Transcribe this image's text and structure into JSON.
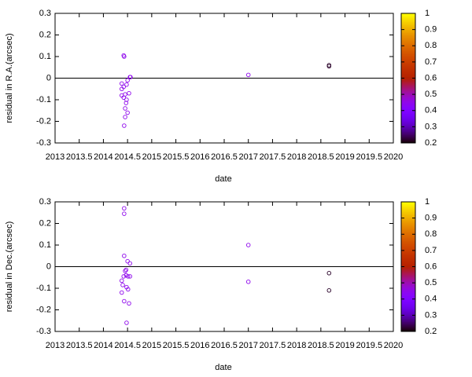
{
  "chart_data": [
    {
      "type": "scatter",
      "ylabel": "residual in R.A.(arcsec)",
      "xlabel": "date",
      "xlim": [
        2013,
        2020
      ],
      "xticks": [
        2013,
        2013.5,
        2014,
        2014.5,
        2015,
        2015.5,
        2016,
        2016.5,
        2017,
        2017.5,
        2018,
        2018.5,
        2019,
        2019.5,
        2020
      ],
      "ylim": [
        -0.3,
        0.3
      ],
      "yticks": [
        -0.3,
        -0.2,
        -0.1,
        0,
        0.1,
        0.2,
        0.3
      ],
      "clim": [
        0.2,
        1
      ],
      "cticks": [
        0.2,
        0.3,
        0.4,
        0.5,
        0.6,
        0.7,
        0.8,
        0.9,
        1
      ],
      "palette": "gnuplot",
      "zeroline": true,
      "x": [
        2014.42,
        2014.43,
        2014.5,
        2014.55,
        2014.56,
        2014.38,
        2014.42,
        2014.38,
        2014.48,
        2014.53,
        2014.45,
        2014.42,
        2014.48,
        2014.47,
        2014.45,
        2014.5,
        2014.45,
        2014.43,
        2014.38,
        2017,
        2018.67,
        2018.67
      ],
      "values": [
        0.105,
        0.1,
        -0.01,
        0.005,
        0.005,
        -0.025,
        -0.04,
        -0.05,
        -0.03,
        -0.07,
        -0.075,
        -0.09,
        -0.1,
        -0.115,
        -0.14,
        -0.16,
        -0.18,
        -0.22,
        -0.08,
        0.015,
        0.06,
        0.055
      ],
      "c": [
        0.45,
        0.45,
        0.45,
        0.45,
        0.45,
        0.45,
        0.45,
        0.45,
        0.45,
        0.45,
        0.45,
        0.45,
        0.45,
        0.45,
        0.45,
        0.45,
        0.45,
        0.45,
        0.45,
        0.45,
        0.22,
        0.22
      ]
    },
    {
      "type": "scatter",
      "ylabel": "residual in Dec.(arcsec)",
      "xlabel": "date",
      "xlim": [
        2013,
        2020
      ],
      "xticks": [
        2013,
        2013.5,
        2014,
        2014.5,
        2015,
        2015.5,
        2016,
        2016.5,
        2017,
        2017.5,
        2018,
        2018.5,
        2019,
        2019.5,
        2020
      ],
      "ylim": [
        -0.3,
        0.3
      ],
      "yticks": [
        -0.3,
        -0.2,
        -0.1,
        0,
        0.1,
        0.2,
        0.3
      ],
      "clim": [
        0.2,
        1
      ],
      "cticks": [
        0.2,
        0.3,
        0.4,
        0.5,
        0.6,
        0.7,
        0.8,
        0.9,
        1
      ],
      "palette": "gnuplot",
      "zeroline": true,
      "x": [
        2014.43,
        2014.43,
        2014.43,
        2014.5,
        2014.55,
        2014.47,
        2014.45,
        2014.47,
        2014.51,
        2014.55,
        2014.38,
        2014.4,
        2014.48,
        2014.38,
        2014.51,
        2014.43,
        2014.53,
        2014.48,
        2014.42,
        2017,
        2017,
        2018.67,
        2018.67
      ],
      "values": [
        0.27,
        0.245,
        0.05,
        0.025,
        0.015,
        -0.015,
        -0.02,
        -0.04,
        -0.045,
        -0.045,
        -0.065,
        -0.085,
        -0.095,
        -0.12,
        -0.105,
        -0.16,
        -0.17,
        -0.26,
        -0.045,
        0.1,
        -0.07,
        -0.03,
        -0.11
      ],
      "c": [
        0.45,
        0.45,
        0.45,
        0.45,
        0.45,
        0.45,
        0.45,
        0.45,
        0.45,
        0.45,
        0.45,
        0.45,
        0.45,
        0.45,
        0.45,
        0.45,
        0.45,
        0.45,
        0.45,
        0.45,
        0.45,
        0.22,
        0.22
      ]
    }
  ]
}
